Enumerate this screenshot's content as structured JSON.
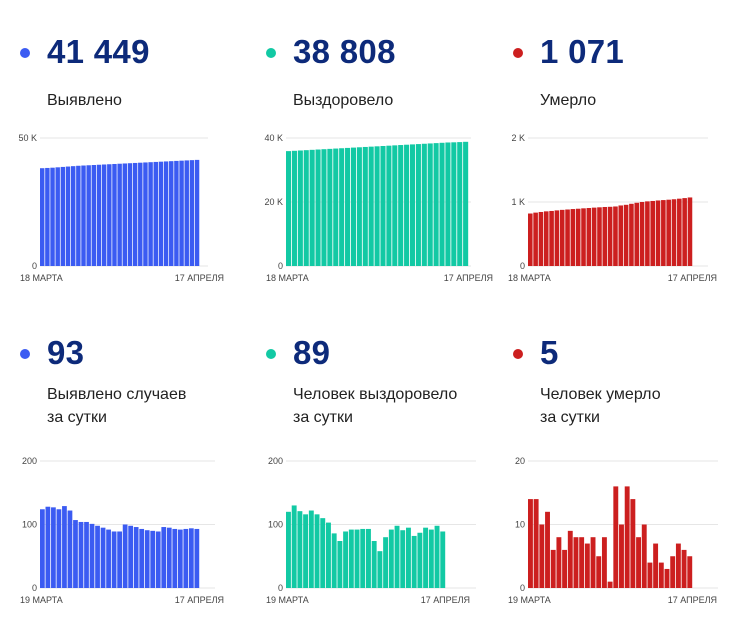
{
  "colors": {
    "blue": "#3b5bf2",
    "teal": "#12c9a4",
    "red": "#cc1f1f",
    "value_text": "#0d2a7a"
  },
  "panels": [
    {
      "value": "41 449",
      "label_lines": [
        "Выявлено"
      ],
      "color": "#3b5bf2"
    },
    {
      "value": "38 808",
      "label_lines": [
        "Выздоровело"
      ],
      "color": "#12c9a4"
    },
    {
      "value": "1 071",
      "label_lines": [
        "Умерло"
      ],
      "color": "#cc1f1f"
    },
    {
      "value": "93",
      "label_lines": [
        "Выявлено случаев",
        "за сутки"
      ],
      "color": "#3b5bf2"
    },
    {
      "value": "89",
      "label_lines": [
        "Человек выздоровело",
        "за сутки"
      ],
      "color": "#12c9a4"
    },
    {
      "value": "5",
      "label_lines": [
        "Человек умерло",
        "за сутки"
      ],
      "color": "#cc1f1f"
    }
  ],
  "chart_data": [
    {
      "type": "bar",
      "ylim": [
        0,
        50000
      ],
      "yticks": [
        0,
        50000
      ],
      "ytick_labels": [
        "0",
        "50 K"
      ],
      "x_start_label": "18 МАРТА",
      "x_end_label": "17 АПРЕЛЯ",
      "color": "#3b5bf2",
      "series": [
        {
          "values": [
            38200,
            38300,
            38400,
            38550,
            38700,
            38850,
            39000,
            39150,
            39250,
            39350,
            39450,
            39550,
            39650,
            39750,
            39850,
            39950,
            40050,
            40150,
            40250,
            40350,
            40450,
            40550,
            40650,
            40750,
            40850,
            40950,
            41050,
            41150,
            41250,
            41350,
            41449
          ]
        }
      ]
    },
    {
      "type": "bar",
      "ylim": [
        0,
        40000
      ],
      "yticks": [
        0,
        20000,
        40000
      ],
      "ytick_labels": [
        "0",
        "20 K",
        "40 K"
      ],
      "x_start_label": "18 МАРТА",
      "x_end_label": "17 АПРЕЛЯ",
      "color": "#12c9a4",
      "series": [
        {
          "values": [
            35900,
            36000,
            36100,
            36200,
            36300,
            36400,
            36500,
            36600,
            36700,
            36800,
            36900,
            37000,
            37100,
            37200,
            37300,
            37400,
            37500,
            37600,
            37700,
            37800,
            37900,
            38000,
            38100,
            38200,
            38300,
            38400,
            38500,
            38600,
            38650,
            38720,
            38808
          ]
        }
      ]
    },
    {
      "type": "bar",
      "ylim": [
        0,
        2000
      ],
      "yticks": [
        0,
        1000,
        2000
      ],
      "ytick_labels": [
        "0",
        "1 K",
        "2 K"
      ],
      "x_start_label": "18 МАРТА",
      "x_end_label": "17 АПРЕЛЯ",
      "color": "#cc1f1f",
      "series": [
        {
          "values": [
            820,
            834,
            844,
            854,
            860,
            869,
            877,
            883,
            890,
            895,
            901,
            906,
            912,
            917,
            922,
            925,
            930,
            946,
            956,
            972,
            988,
            1000,
            1010,
            1016,
            1024,
            1030,
            1036,
            1043,
            1052,
            1061,
            1071
          ]
        }
      ]
    },
    {
      "type": "bar",
      "ylim": [
        0,
        200
      ],
      "yticks": [
        0,
        100,
        200
      ],
      "ytick_labels": [
        "0",
        "100",
        "200"
      ],
      "x_start_label": "19 МАРТА",
      "x_end_label": "17 АПРЕЛЯ",
      "color": "#3b5bf2",
      "series": [
        {
          "values": [
            124,
            128,
            127,
            124,
            129,
            122,
            107,
            104,
            104,
            101,
            98,
            95,
            92,
            89,
            89,
            100,
            98,
            96,
            93,
            91,
            90,
            89,
            96,
            95,
            93,
            92,
            93,
            94,
            93
          ]
        }
      ]
    },
    {
      "type": "bar",
      "ylim": [
        0,
        200
      ],
      "yticks": [
        0,
        100,
        200
      ],
      "ytick_labels": [
        "0",
        "100",
        "200"
      ],
      "x_start_label": "19 МАРТА",
      "x_end_label": "17 АПРЕЛЯ",
      "color": "#12c9a4",
      "series": [
        {
          "values": [
            120,
            130,
            121,
            116,
            122,
            116,
            110,
            103,
            86,
            74,
            89,
            92,
            92,
            93,
            93,
            74,
            58,
            80,
            92,
            98,
            91,
            95,
            82,
            87,
            95,
            92,
            98,
            89
          ]
        }
      ]
    },
    {
      "type": "bar",
      "ylim": [
        0,
        20
      ],
      "yticks": [
        0,
        10,
        20
      ],
      "ytick_labels": [
        "0",
        "10",
        "20"
      ],
      "x_start_label": "19 МАРТА",
      "x_end_label": "17 АПРЕЛЯ",
      "color": "#cc1f1f",
      "series": [
        {
          "values": [
            14,
            14,
            10,
            12,
            6,
            8,
            6,
            9,
            8,
            8,
            7,
            8,
            5,
            8,
            1,
            16,
            10,
            16,
            14,
            8,
            10,
            4,
            7,
            4,
            3,
            5,
            7,
            6,
            5
          ]
        }
      ]
    }
  ]
}
